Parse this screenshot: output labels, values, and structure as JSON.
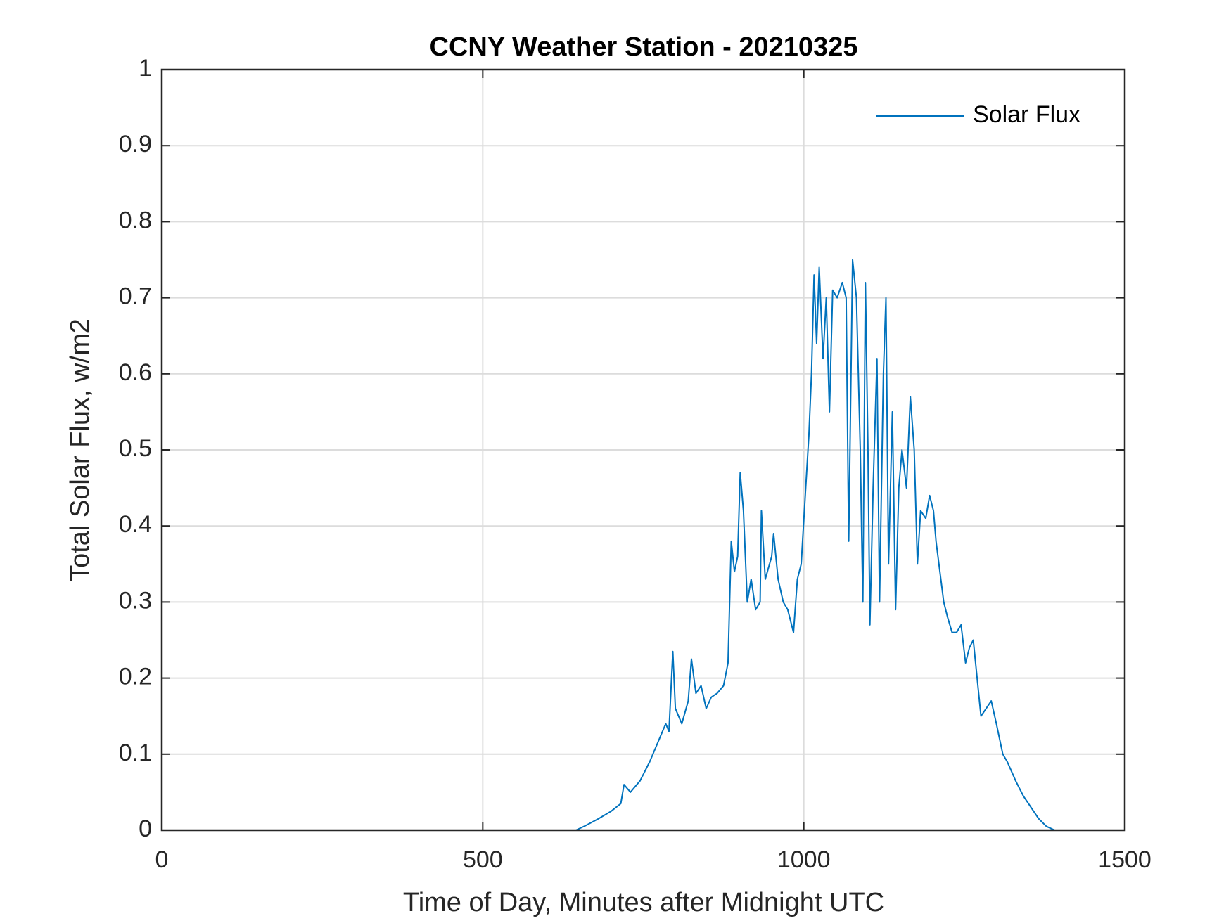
{
  "chart_data": {
    "type": "line",
    "title": "CCNY Weather Station - 20210325",
    "xlabel": "Time of Day, Minutes after Midnight UTC",
    "ylabel": "Total Solar Flux, w/m2",
    "x": [
      0,
      645,
      660,
      680,
      700,
      715,
      720,
      730,
      745,
      760,
      775,
      785,
      790,
      796,
      800,
      810,
      820,
      825,
      832,
      840,
      848,
      856,
      865,
      875,
      882,
      887,
      892,
      897,
      901,
      906,
      912,
      918,
      925,
      932,
      934,
      940,
      950,
      953,
      960,
      968,
      975,
      984,
      990,
      996,
      1003,
      1008,
      1012,
      1016,
      1020,
      1024,
      1030,
      1035,
      1040,
      1045,
      1052,
      1060,
      1066,
      1070,
      1076,
      1082,
      1088,
      1092,
      1096,
      1100,
      1103,
      1108,
      1114,
      1118,
      1124,
      1128,
      1132,
      1138,
      1143,
      1148,
      1153,
      1160,
      1166,
      1172,
      1177,
      1182,
      1190,
      1196,
      1202,
      1206,
      1212,
      1218,
      1224,
      1231,
      1238,
      1245,
      1252,
      1258,
      1264,
      1270,
      1276,
      1284,
      1292,
      1300,
      1310,
      1317,
      1330,
      1342,
      1354,
      1366,
      1378,
      1391,
      1440
    ],
    "series": [
      {
        "name": "Solar Flux",
        "color": "#0072bd",
        "values": [
          0,
          0,
          0.006,
          0.015,
          0.025,
          0.035,
          0.06,
          0.05,
          0.065,
          0.09,
          0.12,
          0.14,
          0.13,
          0.235,
          0.16,
          0.14,
          0.17,
          0.225,
          0.18,
          0.19,
          0.16,
          0.175,
          0.18,
          0.19,
          0.22,
          0.38,
          0.34,
          0.36,
          0.47,
          0.42,
          0.3,
          0.33,
          0.29,
          0.3,
          0.42,
          0.33,
          0.36,
          0.39,
          0.33,
          0.3,
          0.29,
          0.26,
          0.33,
          0.35,
          0.45,
          0.52,
          0.6,
          0.73,
          0.64,
          0.74,
          0.62,
          0.7,
          0.55,
          0.71,
          0.7,
          0.72,
          0.7,
          0.38,
          0.75,
          0.7,
          0.5,
          0.3,
          0.72,
          0.5,
          0.27,
          0.45,
          0.62,
          0.3,
          0.6,
          0.7,
          0.35,
          0.55,
          0.29,
          0.45,
          0.5,
          0.45,
          0.57,
          0.5,
          0.35,
          0.42,
          0.41,
          0.44,
          0.42,
          0.38,
          0.34,
          0.3,
          0.28,
          0.26,
          0.26,
          0.27,
          0.22,
          0.24,
          0.25,
          0.2,
          0.15,
          0.16,
          0.17,
          0.14,
          0.1,
          0.09,
          0.065,
          0.045,
          0.03,
          0.015,
          0.005,
          0,
          0
        ]
      }
    ],
    "xlim": [
      0,
      1500
    ],
    "xticks": [
      0,
      500,
      1000,
      1500
    ],
    "ylim": [
      0,
      1
    ],
    "yticks": [
      0,
      0.1,
      0.2,
      0.3,
      0.4,
      0.5,
      0.6,
      0.7,
      0.8,
      0.9,
      1
    ],
    "grid": true,
    "legend": "upper right"
  }
}
